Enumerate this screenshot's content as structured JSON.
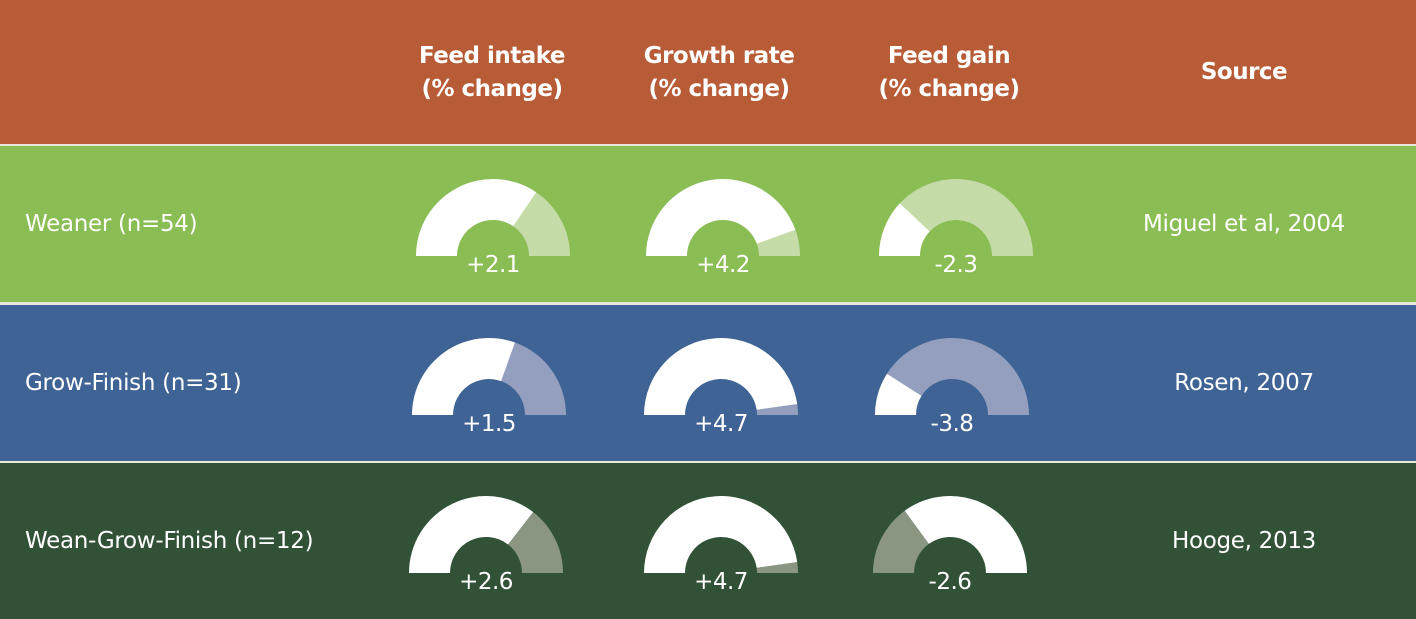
{
  "chart_data": {
    "type": "table",
    "title": "",
    "columns": [
      "Feed intake (% change)",
      "Growth rate (% change)",
      "Feed gain (% change)",
      "Source"
    ],
    "header": {
      "metrics": [
        {
          "line1": "Feed intake",
          "line2": "(% change)"
        },
        {
          "line1": "Growth rate",
          "line2": "(% change)"
        },
        {
          "line1": "Feed gain",
          "line2": "(% change)"
        }
      ],
      "source": "Source"
    },
    "colors": {
      "header_bg": "#b75c36",
      "gauge_main": "#ffffff"
    },
    "rows": [
      {
        "label": "Weaner (n=54)",
        "source": "Miguel et al, 2004",
        "bg": "#8bbd55",
        "rest_color": "#c5dca8",
        "gauges": [
          {
            "value": "+2.1",
            "white_from": 0,
            "white_to": 0.69
          },
          {
            "value": "+4.2",
            "white_from": 0,
            "white_to": 0.89
          },
          {
            "value": "-2.3",
            "white_from": 0,
            "white_to": 0.24
          }
        ]
      },
      {
        "label": "Grow-Finish (n=31)",
        "source": "Rosen, 2007",
        "bg": "#3e6394",
        "rest_color": "#949fc0",
        "gauges": [
          {
            "value": "+1.5",
            "white_from": 0,
            "white_to": 0.61
          },
          {
            "value": "+4.7",
            "white_from": 0,
            "white_to": 0.955
          },
          {
            "value": "-3.8",
            "white_from": 0,
            "white_to": 0.18
          }
        ]
      },
      {
        "label": "Wean-Grow-Finish (n=12)",
        "source": "Hooge, 2013",
        "bg": "#325238",
        "rest_color": "#8a9682",
        "gauges": [
          {
            "value": "+2.6",
            "white_from": 0,
            "white_to": 0.71
          },
          {
            "value": "+4.7",
            "white_from": 0,
            "white_to": 0.955
          },
          {
            "value": "-2.6",
            "white_from": 0.3,
            "white_to": 1
          }
        ]
      }
    ]
  }
}
